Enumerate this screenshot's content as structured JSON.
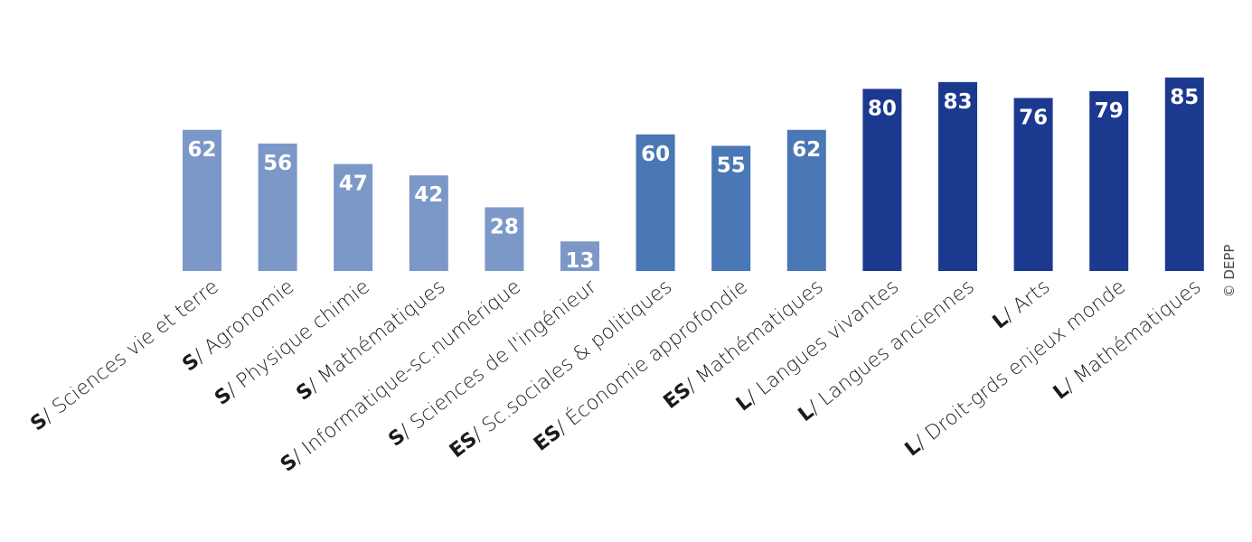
{
  "chart_data": {
    "type": "bar",
    "categories": [
      {
        "prefix": "S",
        "label": "/ Sciences vie et terre",
        "group": "S"
      },
      {
        "prefix": "S",
        "label": "/ Agronomie",
        "group": "S"
      },
      {
        "prefix": "S",
        "label": "/ Physique chimie",
        "group": "S"
      },
      {
        "prefix": "S",
        "label": "/ Mathématiques",
        "group": "S"
      },
      {
        "prefix": "S",
        "label": "/ Informatique-sc.numérique",
        "group": "S"
      },
      {
        "prefix": "S",
        "label": "/ Sciences de l'ingénieur",
        "group": "S"
      },
      {
        "prefix": "ES",
        "label": "/ Sc.sociales & politiques",
        "group": "ES"
      },
      {
        "prefix": "ES",
        "label": "/ Économie approfondie",
        "group": "ES"
      },
      {
        "prefix": "ES",
        "label": "/ Mathématiques",
        "group": "ES"
      },
      {
        "prefix": "L",
        "label": "/ Langues vivantes",
        "group": "L"
      },
      {
        "prefix": "L",
        "label": "/ Langues anciennes",
        "group": "L"
      },
      {
        "prefix": "L",
        "label": "/ Arts",
        "group": "L"
      },
      {
        "prefix": "L",
        "label": "/ Droit-grds enjeux monde",
        "group": "L"
      },
      {
        "prefix": "L",
        "label": "/ Mathématiques",
        "group": "L"
      }
    ],
    "values": [
      62,
      56,
      47,
      42,
      28,
      13,
      60,
      55,
      62,
      80,
      83,
      76,
      79,
      85
    ],
    "group_colors": {
      "S": "#7b98c8",
      "ES": "#4a77b5",
      "L": "#1b3a8f"
    },
    "ylim": [
      0,
      100
    ],
    "grid": false,
    "legend": "none"
  },
  "credit": "© DEPP"
}
